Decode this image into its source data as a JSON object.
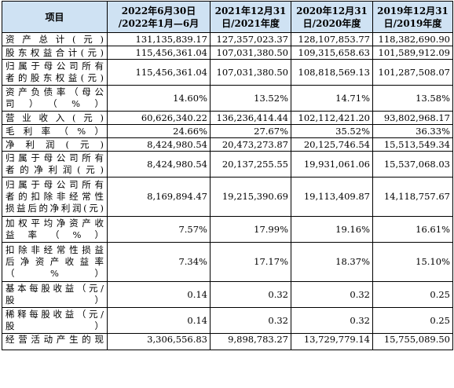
{
  "header": {
    "item": "项目",
    "col1": [
      "2022年6月30日",
      "/2022年1月—6月"
    ],
    "col2": [
      "2021年12月31",
      "日/2021年度"
    ],
    "col3": [
      "2020年12月31",
      "日/2020年度"
    ],
    "col4": [
      "2019年12月31",
      "日/2019年度"
    ]
  },
  "rows": [
    {
      "label": [
        "资产总计(元)"
      ],
      "values": [
        "131,135,839.17",
        "127,357,023.37",
        "128,107,853.77",
        "118,382,690.90"
      ]
    },
    {
      "label": [
        "股东权益合计(元)"
      ],
      "values": [
        "115,456,361.04",
        "107,031,380.50",
        "109,315,658.63",
        "101,589,912.09"
      ]
    },
    {
      "label": [
        "归属于母公司所有",
        "者的股东权益(元)"
      ],
      "values": [
        "115,456,361.04",
        "107,031,380.50",
        "108,818,569.13",
        "101,287,508.07"
      ]
    },
    {
      "label": [
        "资产负债率（母公",
        "司）（%）"
      ],
      "values": [
        "14.60%",
        "13.52%",
        "14.71%",
        "13.58%"
      ]
    },
    {
      "label": [
        "营业收入(元)"
      ],
      "values": [
        "60,626,340.22",
        "136,236,414.44",
        "102,112,421.20",
        "93,802,968.17"
      ]
    },
    {
      "label": [
        "毛利率（%）"
      ],
      "values": [
        "24.66%",
        "27.67%",
        "35.52%",
        "36.33%"
      ]
    },
    {
      "label": [
        "净利润(元)"
      ],
      "values": [
        "8,424,980.54",
        "20,473,273.87",
        "20,125,746.54",
        "15,513,549.34"
      ]
    },
    {
      "label": [
        "归属于母公司所有",
        "者的净利润(元)"
      ],
      "values": [
        "8,424,980.54",
        "20,137,255.55",
        "19,931,061.06",
        "15,537,068.03"
      ]
    },
    {
      "label": [
        "归属于母公司所有",
        "者的扣除非经常性",
        "损益后的净利润(元)"
      ],
      "values": [
        "8,169,894.47",
        "19,215,390.69",
        "19,113,409.87",
        "14,118,757.67"
      ]
    },
    {
      "label": [
        "加权平均净资产收",
        "益率（%）"
      ],
      "values": [
        "7.57%",
        "17.99%",
        "19.16%",
        "16.61%"
      ]
    },
    {
      "label": [
        "扣除非经常性损益",
        "后净资产收益率",
        "（%）"
      ],
      "values": [
        "7.34%",
        "17.17%",
        "18.37%",
        "15.10%"
      ]
    },
    {
      "label": [
        "基本每股收益（元/",
        "股）"
      ],
      "values": [
        "0.14",
        "0.32",
        "0.32",
        "0.25"
      ]
    },
    {
      "label": [
        "稀释每股收益（元/",
        "股）"
      ],
      "values": [
        "0.14",
        "0.32",
        "0.32",
        "0.25"
      ]
    },
    {
      "label": [
        "经营活动产生的现"
      ],
      "values": [
        "3,306,556.83",
        "9,898,783.27",
        "13,729,779.14",
        "15,755,089.50"
      ]
    }
  ]
}
